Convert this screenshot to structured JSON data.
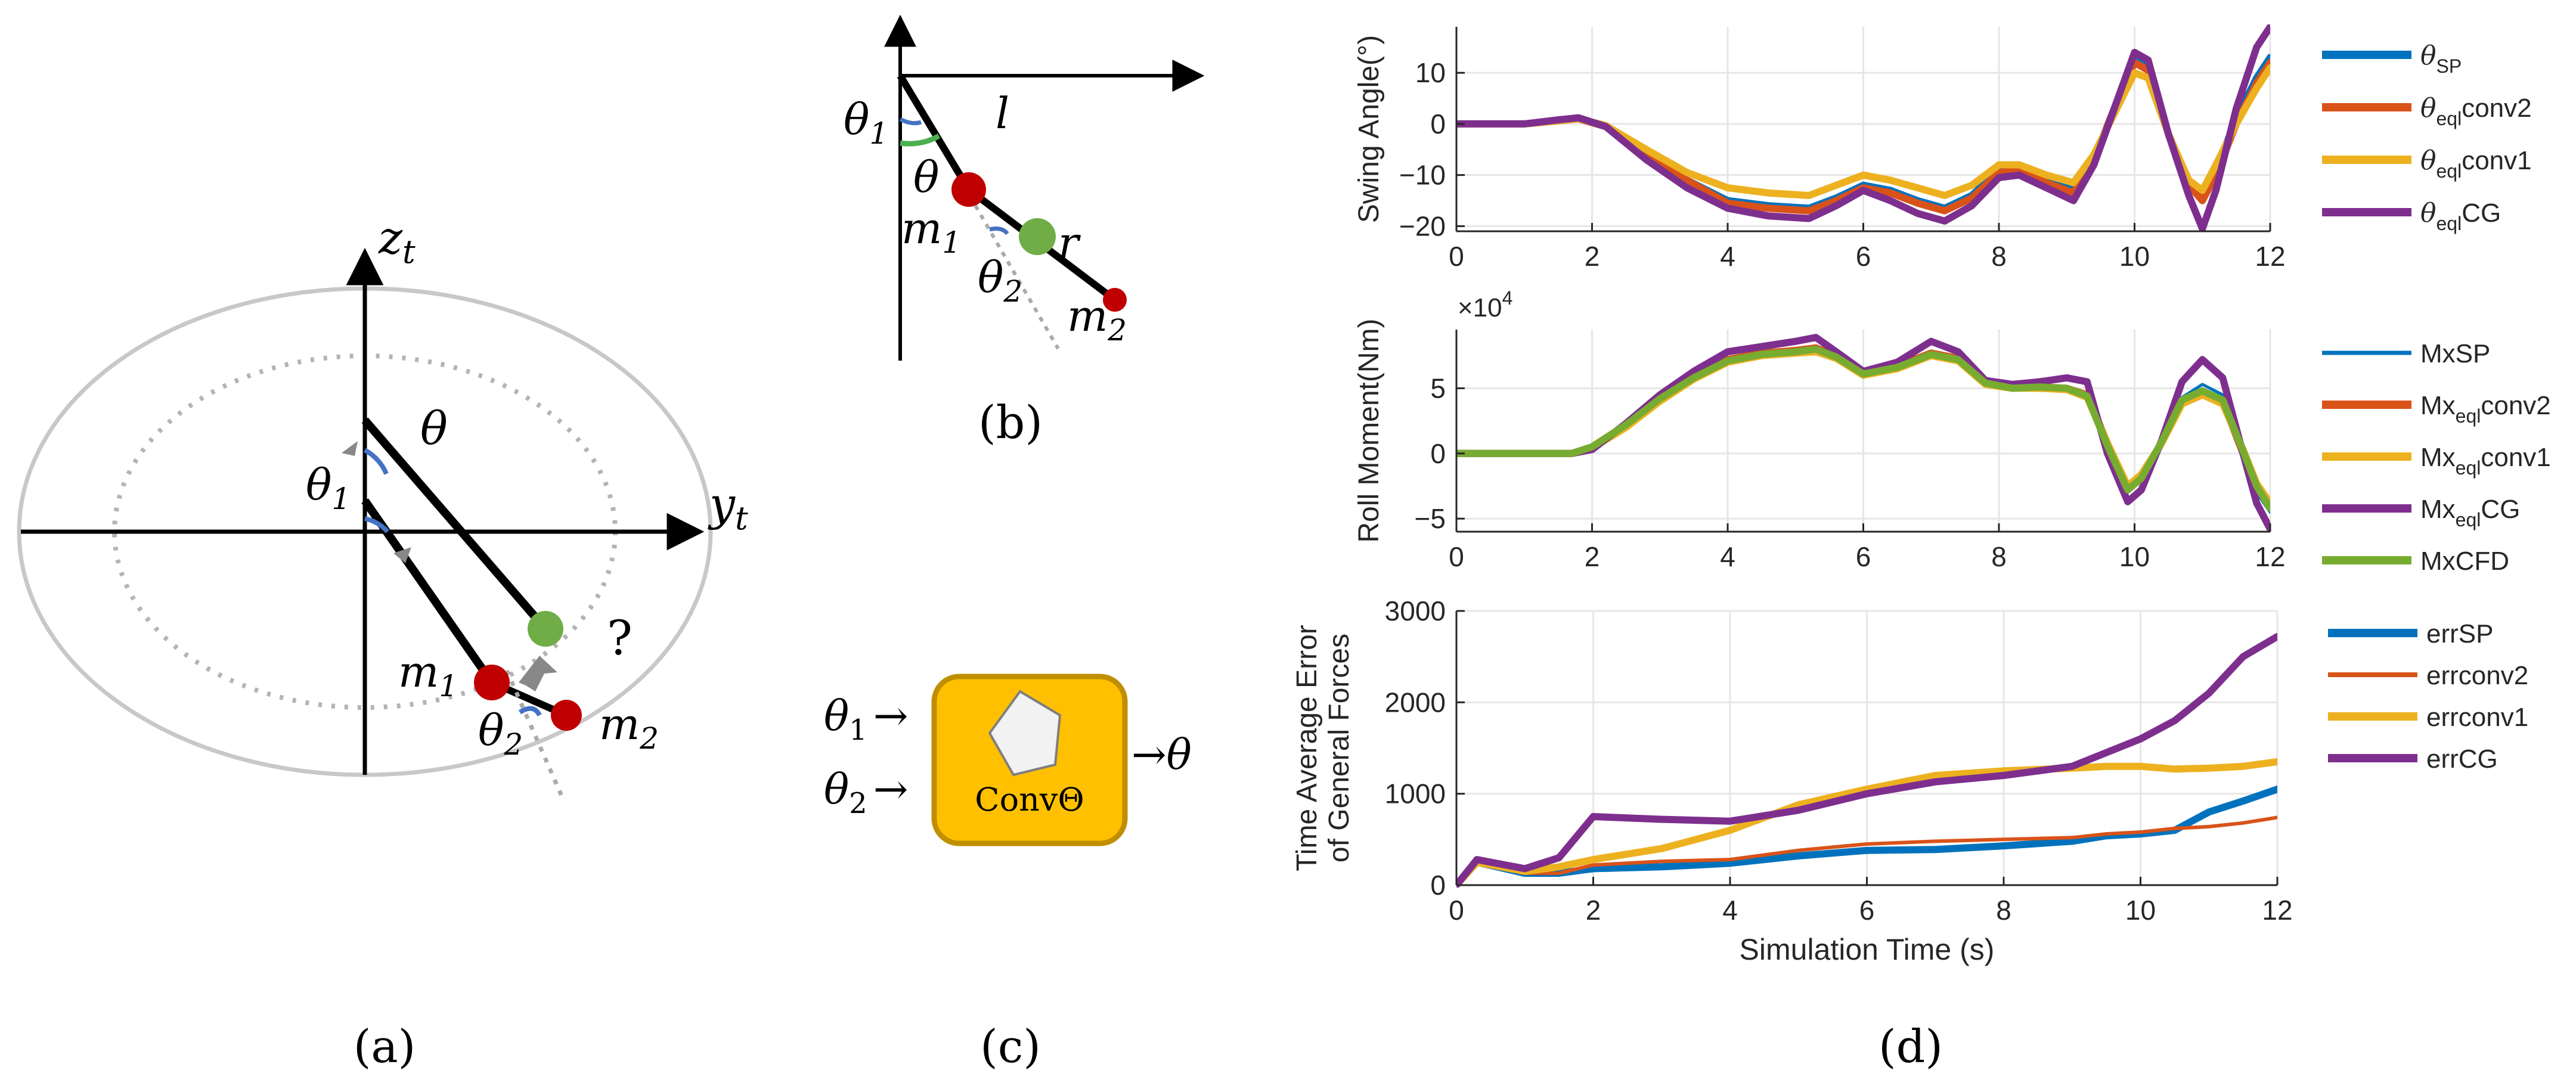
{
  "panel_a": {
    "caption": "(a)",
    "z_axis": "z",
    "z_sub": "t",
    "y_axis": "y",
    "y_sub": "t",
    "theta": "θ",
    "theta1": "θ",
    "theta1_sub": "1",
    "theta2": "θ",
    "theta2_sub": "2",
    "m1": "m",
    "m1_sub": "1",
    "m2": "m",
    "m2_sub": "2",
    "question": "?"
  },
  "panel_b": {
    "caption": "(b)",
    "theta1": "θ",
    "theta1_sub": "1",
    "theta": "θ",
    "l": "l",
    "m1": "m",
    "m1_sub": "1",
    "r": "r",
    "theta2": "θ",
    "theta2_sub": "2",
    "m2": "m",
    "m2_sub": "2"
  },
  "panel_c": {
    "caption": "(c)",
    "in1": "θ",
    "in1_sub": "1",
    "in2": "θ",
    "in2_sub": "2",
    "box_label": "ConvΘ",
    "out": "θ",
    "arrow": "→"
  },
  "panel_d": {
    "caption": "(d)",
    "xlabel": "Simulation Time (s)"
  },
  "colors": {
    "blue": "#0072BD",
    "orange": "#D95319",
    "yellow": "#EDB120",
    "purple": "#7E2F8E",
    "green": "#77AC30",
    "mass_red": "#C00000",
    "mass_green": "#70AD47",
    "box_fill": "#FFC000",
    "box_border": "#BF8F00"
  },
  "chart_data": [
    {
      "type": "line",
      "title": "",
      "xlabel": "",
      "ylabel": "Swing Angle(°)",
      "xlim": [
        0,
        12
      ],
      "ylim": [
        -21,
        19
      ],
      "xticks": [
        0,
        2,
        4,
        6,
        8,
        10,
        12
      ],
      "yticks": [
        -20,
        -10,
        0,
        10
      ],
      "grid": true,
      "legend": "right",
      "x": [
        0,
        1,
        1.5,
        1.8,
        2.2,
        2.8,
        3.4,
        4,
        4.6,
        5.2,
        5.6,
        6,
        6.4,
        6.8,
        7.2,
        7.6,
        8,
        8.3,
        8.7,
        9.1,
        9.4,
        9.7,
        10,
        10.2,
        10.5,
        10.8,
        11,
        11.2,
        11.5,
        11.8,
        12
      ],
      "series": [
        {
          "name": "θSP",
          "label_main": "θ",
          "label_sub": "SP",
          "label_tail": "",
          "values": [
            0,
            0,
            0.6,
            1,
            -0.5,
            -6,
            -11,
            -15,
            -16,
            -16.5,
            -14.5,
            -12,
            -13,
            -15,
            -16.5,
            -14,
            -9,
            -8.5,
            -11,
            -13,
            -7,
            3,
            13,
            11,
            -2,
            -12,
            -14,
            -9,
            1,
            9,
            13
          ]
        },
        {
          "name": "θeqlconv2",
          "label_main": "θ",
          "label_sub": "eql",
          "label_tail": "conv2",
          "values": [
            0,
            0,
            0.6,
            1,
            -0.5,
            -6,
            -11,
            -15.5,
            -16.5,
            -17,
            -15,
            -12.5,
            -13.5,
            -15.5,
            -17,
            -14.5,
            -9.5,
            -9,
            -11.5,
            -13.5,
            -7,
            3,
            12,
            10.5,
            -2,
            -12,
            -15,
            -10,
            0,
            8,
            12
          ]
        },
        {
          "name": "θeqlconv1",
          "label_main": "θ",
          "label_sub": "eql",
          "label_tail": "conv1",
          "values": [
            0,
            0,
            0.6,
            1,
            -0.3,
            -5,
            -9.5,
            -12.5,
            -13.5,
            -14,
            -12,
            -10,
            -11,
            -12.5,
            -14,
            -12,
            -8,
            -8,
            -10,
            -11.5,
            -6,
            2,
            10,
            9,
            -2,
            -11,
            -13,
            -8,
            0,
            7,
            11
          ]
        },
        {
          "name": "θeqlCG",
          "label_main": "θ",
          "label_sub": "eql",
          "label_tail": "CG",
          "values": [
            0,
            0,
            0.8,
            1.2,
            -0.5,
            -7,
            -12.5,
            -16.5,
            -18,
            -18.5,
            -16,
            -13,
            -15,
            -17.5,
            -19,
            -16,
            -10.5,
            -10,
            -12.5,
            -15,
            -8,
            3,
            14,
            12.5,
            -2,
            -14,
            -20.5,
            -13,
            3,
            15,
            19
          ]
        }
      ]
    },
    {
      "type": "line",
      "title": "",
      "xlabel": "",
      "ylabel": "Roll Moment(Nm)",
      "exponent_label": "×10",
      "exponent_power": "4",
      "xlim": [
        0,
        12
      ],
      "ylim": [
        -6,
        9.5
      ],
      "xticks": [
        0,
        2,
        4,
        6,
        8,
        10,
        12
      ],
      "yticks": [
        -5,
        0,
        5
      ],
      "grid": true,
      "legend": "right",
      "x": [
        0,
        1,
        1.7,
        2,
        2.5,
        3,
        3.5,
        4,
        4.5,
        5,
        5.3,
        5.6,
        6,
        6.5,
        7,
        7.4,
        7.8,
        8.2,
        8.6,
        9,
        9.3,
        9.6,
        9.9,
        10.1,
        10.4,
        10.7,
        11,
        11.3,
        11.6,
        11.8,
        12
      ],
      "series": [
        {
          "name": "MxSP",
          "label_main": "Mx",
          "label_sub": "",
          "label_tail": "SP",
          "values": [
            0,
            0,
            0,
            0.5,
            2.3,
            4.3,
            6,
            7.3,
            7.8,
            8,
            8.2,
            7.6,
            6.2,
            6.8,
            7.8,
            7.4,
            5.5,
            5.1,
            5.2,
            5.1,
            4.5,
            0.5,
            -3,
            -2,
            0.8,
            4.3,
            5.3,
            4.5,
            0,
            -3,
            -4.5
          ]
        },
        {
          "name": "Mxeqlconv2",
          "label_main": "Mx",
          "label_sub": "eql",
          "label_tail": "conv2",
          "values": [
            0,
            0,
            0,
            0.5,
            2.2,
            4.2,
            5.9,
            7.2,
            7.7,
            7.9,
            8.1,
            7.5,
            6.1,
            6.7,
            7.7,
            7.3,
            5.4,
            5,
            5.1,
            5,
            4.5,
            0.8,
            -2.7,
            -1.8,
            0.8,
            4,
            4.7,
            4,
            0,
            -2.6,
            -4
          ]
        },
        {
          "name": "Mxeqlconv1",
          "label_main": "Mx",
          "label_sub": "eql",
          "label_tail": "conv1",
          "values": [
            0,
            0,
            0,
            0.4,
            2,
            4,
            5.7,
            7,
            7.5,
            7.7,
            7.8,
            7.3,
            6,
            6.5,
            7.5,
            7.1,
            5.3,
            5,
            5,
            4.9,
            4.3,
            0.8,
            -2.5,
            -1.6,
            0.8,
            3.8,
            4.5,
            3.8,
            0.3,
            -2.3,
            -3.8
          ]
        },
        {
          "name": "MxeqlCG",
          "label_main": "Mx",
          "label_sub": "eql",
          "label_tail": "CG",
          "values": [
            0,
            0,
            0,
            0.3,
            2.3,
            4.5,
            6.3,
            7.8,
            8.2,
            8.6,
            8.9,
            7.8,
            6.3,
            7,
            8.6,
            7.8,
            5.6,
            5.3,
            5.5,
            5.8,
            5.5,
            0,
            -3.7,
            -2.8,
            1,
            5.5,
            7.2,
            5.8,
            0,
            -3.8,
            -5.8
          ]
        },
        {
          "name": "MxCFD",
          "label_main": "Mx",
          "label_sub": "",
          "label_tail": "CFD",
          "values": [
            0,
            0,
            0,
            0.5,
            2.2,
            4.2,
            5.8,
            7.1,
            7.6,
            7.8,
            8,
            7.4,
            6.1,
            6.6,
            7.6,
            7.2,
            5.4,
            5,
            5.1,
            5,
            4.4,
            0.6,
            -2.8,
            -1.9,
            0.9,
            4.1,
            4.8,
            4.1,
            0.2,
            -2.5,
            -4.2
          ]
        }
      ]
    },
    {
      "type": "line",
      "title": "",
      "xlabel": "Simulation Time (s)",
      "ylabel": "Time Average Error of General Forces",
      "ylabel_line1": "Time Average Error",
      "ylabel_line2": "of General Forces",
      "xlim": [
        0,
        12
      ],
      "ylim": [
        0,
        3000
      ],
      "xticks": [
        0,
        2,
        4,
        6,
        8,
        10,
        12
      ],
      "yticks": [
        0,
        1000,
        2000,
        3000
      ],
      "grid": true,
      "legend": "right",
      "x": [
        0,
        0.3,
        1,
        1.5,
        2,
        3,
        4,
        5,
        6,
        7,
        8,
        9,
        9.5,
        10,
        10.5,
        11,
        11.5,
        12
      ],
      "series": [
        {
          "name": "errSP",
          "label_main": "err",
          "label_sub": "",
          "label_tail": "SP",
          "values": [
            0,
            250,
            130,
            130,
            180,
            200,
            240,
            320,
            380,
            390,
            430,
            480,
            540,
            560,
            600,
            800,
            920,
            1050
          ]
        },
        {
          "name": "errconv2",
          "label_main": "err",
          "label_sub": "",
          "label_tail": "conv2",
          "values": [
            0,
            250,
            130,
            130,
            220,
            260,
            280,
            380,
            450,
            480,
            500,
            520,
            560,
            580,
            620,
            640,
            680,
            740
          ]
        },
        {
          "name": "errconv1",
          "label_main": "err",
          "label_sub": "",
          "label_tail": "conv1",
          "values": [
            0,
            250,
            150,
            200,
            280,
            400,
            600,
            880,
            1050,
            1200,
            1250,
            1280,
            1300,
            1300,
            1270,
            1280,
            1300,
            1350
          ]
        },
        {
          "name": "errCG",
          "label_main": "err",
          "label_sub": "",
          "label_tail": "CG",
          "values": [
            0,
            280,
            180,
            300,
            750,
            720,
            700,
            820,
            1000,
            1130,
            1200,
            1300,
            1450,
            1600,
            1800,
            2100,
            2500,
            2720
          ]
        }
      ]
    }
  ]
}
